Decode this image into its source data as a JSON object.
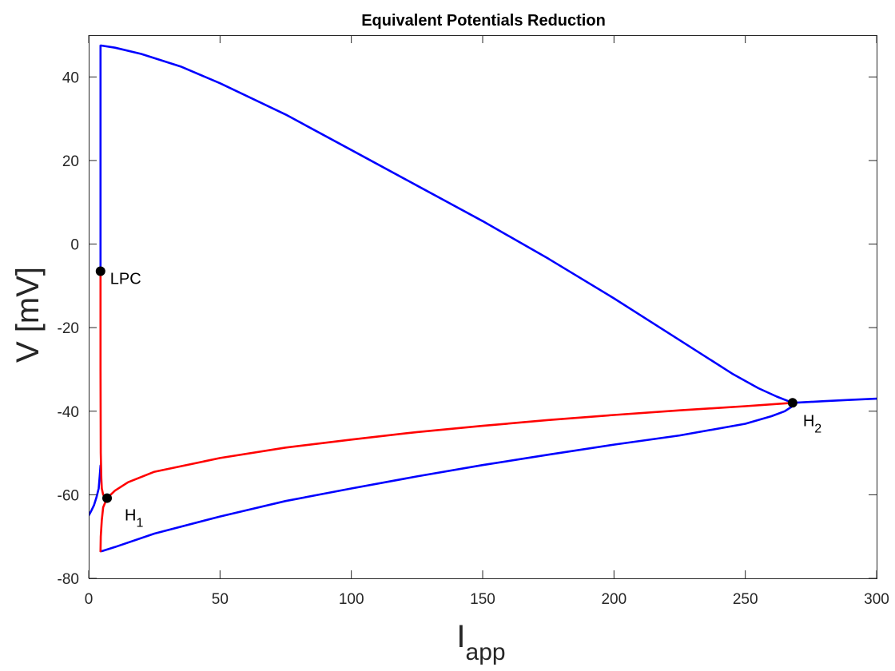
{
  "chart_data": {
    "type": "line",
    "title": "Equivalent Potentials Reduction",
    "xlabel": {
      "main": "I",
      "sub": "app"
    },
    "ylabel": "V [mV]",
    "xlim": [
      0,
      300
    ],
    "ylim": [
      -80,
      50
    ],
    "xticks": [
      0,
      50,
      100,
      150,
      200,
      250,
      300
    ],
    "yticks": [
      -80,
      -60,
      -40,
      -20,
      0,
      20,
      40
    ],
    "grid": false,
    "series": [
      {
        "name": "stable equilibrium low",
        "color": "#0000ff",
        "x": [
          0,
          1,
          2,
          3,
          3.8,
          4.2,
          4.5
        ],
        "y": [
          -65,
          -63.8,
          -62.5,
          -60.5,
          -58.5,
          -55.5,
          -53
        ]
      },
      {
        "name": "periodic orbit max",
        "color": "#0000ff",
        "x": [
          4.5,
          4.5,
          4.5,
          5,
          10,
          20,
          35,
          50,
          75,
          100,
          125,
          150,
          175,
          200,
          225,
          245,
          255,
          262,
          266,
          268
        ],
        "y": [
          -6.5,
          20,
          47.5,
          47.5,
          47,
          45.5,
          42.5,
          38.5,
          31,
          22.5,
          14,
          5.5,
          -3.5,
          -13,
          -23,
          -31,
          -34.5,
          -36.5,
          -37.5,
          -38
        ]
      },
      {
        "name": "periodic orbit min",
        "color": "#0000ff",
        "x": [
          4.5,
          5,
          10,
          25,
          50,
          75,
          100,
          125,
          150,
          175,
          200,
          225,
          250,
          260,
          265,
          267.5,
          268
        ],
        "y": [
          -73.5,
          -73.5,
          -72.5,
          -69.3,
          -65.2,
          -61.5,
          -58.5,
          -55.6,
          -52.9,
          -50.4,
          -48,
          -45.8,
          -43,
          -41.2,
          -40,
          -39,
          -38
        ]
      },
      {
        "name": "stable equilibrium high",
        "color": "#0000ff",
        "x": [
          268,
          280,
          290,
          300
        ],
        "y": [
          -38,
          -37.6,
          -37.3,
          -37
        ]
      },
      {
        "name": "unstable periodic orbit",
        "color": "#ff0000",
        "x": [
          4.5,
          4.5,
          4.6,
          4.8,
          5,
          5.5,
          6.5,
          7,
          6.5,
          5.5,
          5,
          4.6,
          4.5
        ],
        "y": [
          -6.5,
          -30,
          -50,
          -56,
          -58.5,
          -60,
          -60.6,
          -60.8,
          -61.5,
          -63,
          -66,
          -70,
          -73.5
        ]
      },
      {
        "name": "unstable equilibrium",
        "color": "#ff0000",
        "x": [
          7,
          10,
          15,
          25,
          50,
          75,
          100,
          125,
          150,
          175,
          200,
          225,
          250,
          268
        ],
        "y": [
          -60.8,
          -59,
          -57,
          -54.5,
          -51.2,
          -48.7,
          -46.8,
          -45,
          -43.5,
          -42.1,
          -40.9,
          -39.8,
          -38.8,
          -38
        ]
      }
    ],
    "points": [
      {
        "name": "LPC",
        "label": "LPC",
        "sub": "",
        "x": 4.5,
        "y": -6.5
      },
      {
        "name": "H1",
        "label": "H",
        "sub": "1",
        "x": 7,
        "y": -60.8
      },
      {
        "name": "H2",
        "label": "H",
        "sub": "2",
        "x": 268,
        "y": -38
      }
    ]
  }
}
